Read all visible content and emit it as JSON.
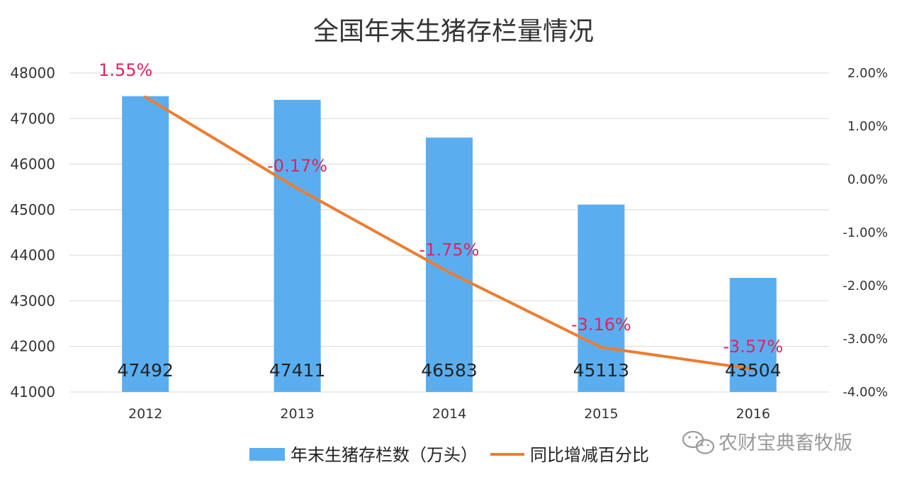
{
  "chart_data": {
    "type": "bar",
    "title": "全国年末生猪存栏量情况",
    "categories": [
      "2012",
      "2013",
      "2014",
      "2015",
      "2016"
    ],
    "series": [
      {
        "name": "年末生猪存栏数（万头）",
        "type": "bar",
        "axis": "left",
        "values": [
          47492,
          47411,
          46583,
          45113,
          43504
        ],
        "labels": [
          "47492",
          "47411",
          "46583",
          "45113",
          "43504"
        ],
        "color": "#5aaef0"
      },
      {
        "name": "同比增减百分比",
        "type": "line",
        "axis": "right",
        "values": [
          1.55,
          -0.17,
          -1.75,
          -3.16,
          -3.57
        ],
        "labels": [
          "1.55%",
          "-0.17%",
          "-1.75%",
          "-3.16%",
          "-3.57%"
        ],
        "color": "#ed7d31",
        "label_color": "#e0245e"
      }
    ],
    "y_left": {
      "ylim": [
        41000,
        48000
      ],
      "ticks": [
        41000,
        42000,
        43000,
        44000,
        45000,
        46000,
        47000,
        48000
      ],
      "tick_labels": [
        "41000",
        "42000",
        "43000",
        "44000",
        "45000",
        "46000",
        "47000",
        "48000"
      ]
    },
    "y_right": {
      "ylim": [
        -4,
        2
      ],
      "ticks": [
        -4,
        -3,
        -2,
        -1,
        0,
        1,
        2
      ],
      "tick_labels": [
        "-4.00%",
        "-3.00%",
        "-2.00%",
        "-1.00%",
        "0.00%",
        "1.00%",
        "2.00%"
      ]
    },
    "grid": true,
    "legend_position": "bottom"
  },
  "watermark": {
    "icon": "wechat-icon",
    "text": "农财宝典畜牧版"
  }
}
